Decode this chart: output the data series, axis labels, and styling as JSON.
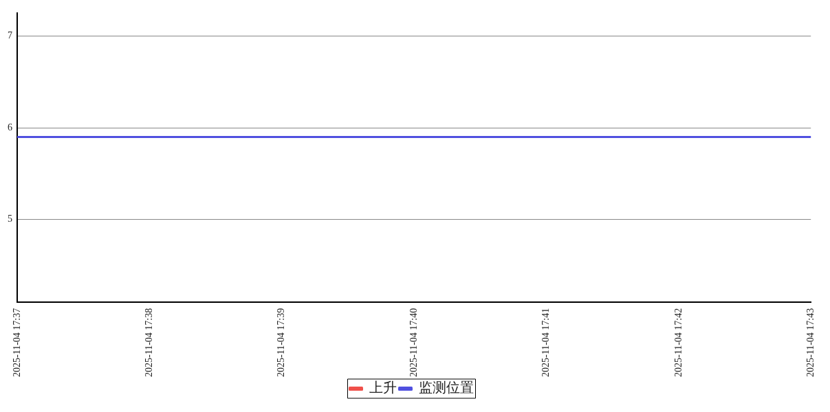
{
  "chart_data": {
    "type": "line",
    "categories": [
      "2025-11-04 17:37",
      "2025-11-04 17:38",
      "2025-11-04 17:39",
      "2025-11-04 17:40",
      "2025-11-04 17:41",
      "2025-11-04 17:42",
      "2025-11-04 17:43"
    ],
    "series": [
      {
        "name": "上升",
        "color": "#f0504a",
        "values": [
          null,
          null,
          null,
          null,
          null,
          null,
          null
        ]
      },
      {
        "name": "监测位置",
        "color": "#5050e0",
        "values": [
          5.9,
          5.9,
          5.9,
          5.9,
          5.9,
          5.9,
          5.9
        ]
      }
    ],
    "ylim": [
      4.1,
      7.25
    ],
    "yticks": [
      5,
      6,
      7
    ],
    "grid": "y",
    "legend": "bottom",
    "marker": "none",
    "line_style": "solid"
  }
}
